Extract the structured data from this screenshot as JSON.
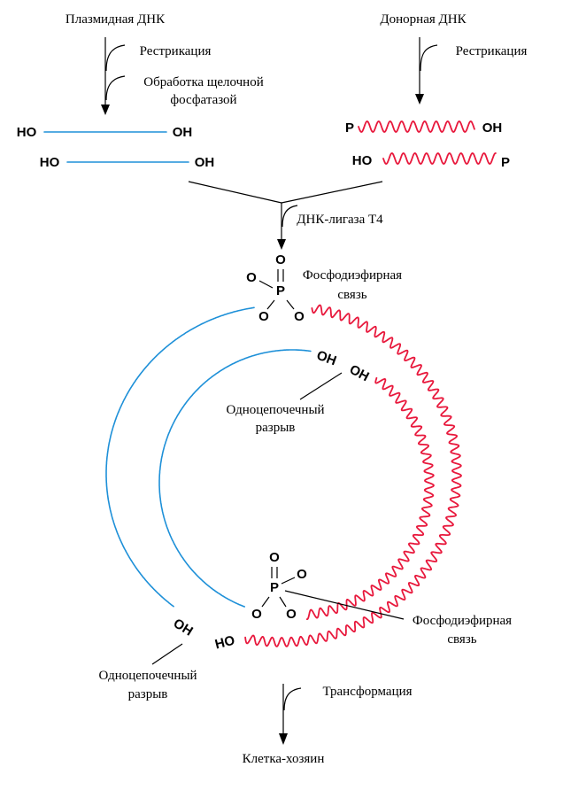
{
  "colors": {
    "plasmid_strand": "#1e90d8",
    "donor_strand": "#e8183c",
    "ink": "#000000"
  },
  "plasmid": {
    "title": "Плазмидная ДНК",
    "restriction": "Рестрикация",
    "phosphatase_line1": "Обработка щелочной",
    "phosphatase_line2": "фосфатазой",
    "strand1": {
      "left": "HO",
      "right": "OH"
    },
    "strand2": {
      "left": "HO",
      "right": "OH"
    }
  },
  "donor": {
    "title": "Донорная ДНК",
    "restriction": "Рестрикация",
    "strand1": {
      "left": "P",
      "right": "OH"
    },
    "strand2": {
      "left": "HO",
      "right": "P"
    }
  },
  "ligation": {
    "enzyme": "ДНК-лигаза Т4"
  },
  "top_phosphate": {
    "p": "P",
    "o_top": "O",
    "o_left": "O",
    "o_bottom_left": "O",
    "o_bottom_right": "O",
    "label_line1": "Фосфодиэфирная",
    "label_line2": "связь"
  },
  "inner_nick": {
    "end1": "OH",
    "end2": "OH",
    "label_line1": "Одноцепочечный",
    "label_line2": "разрыв"
  },
  "bottom_phosphate": {
    "p": "P",
    "o_top": "O",
    "o_right": "O",
    "o_bottom_left": "O",
    "o_bottom_right": "O",
    "label_line1": "Фосфодиэфирная",
    "label_line2": "связь"
  },
  "outer_nick": {
    "end_oh": "OH",
    "end_ho": "HO",
    "label_line1": "Одноцепочечный",
    "label_line2": "разрыв"
  },
  "transformation": {
    "label": "Трансформация",
    "result": "Клетка-хозяин"
  }
}
